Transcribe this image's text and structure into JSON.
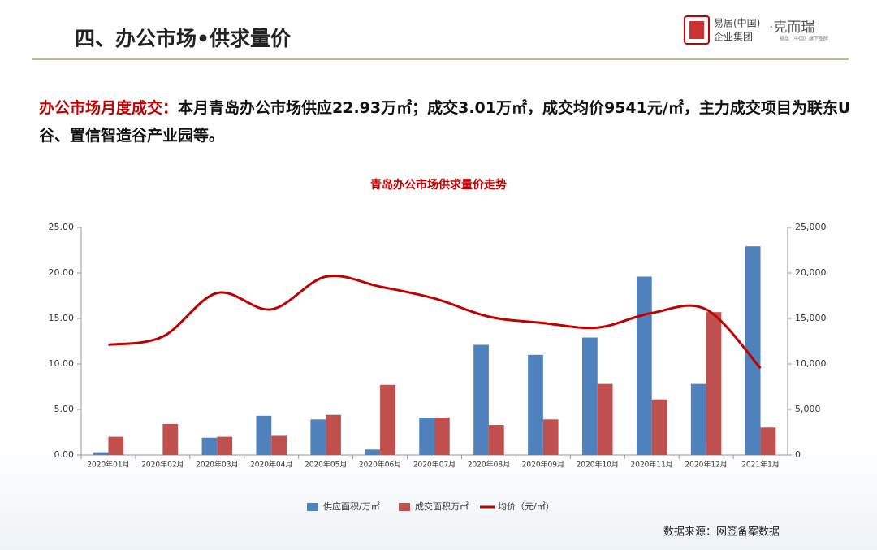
{
  "header": {
    "title": "四、办公市场•供求量价",
    "logo": {
      "line1": "易居(中国)",
      "line2": "企业集团",
      "brand": "·克而瑞",
      "brand_sub": "易居（中国）旗下品牌"
    }
  },
  "summary": {
    "label": "办公市场月度成交：",
    "text": "本月青岛办公市场供应22.93万㎡；成交3.01万㎡，成交均价9541元/㎡，主力成交项目为联东U谷、置信智造谷产业园等。"
  },
  "chart_data": {
    "type": "bar",
    "title": "青岛办公市场供求量价走势",
    "categories": [
      "2020年01月",
      "2020年02月",
      "2020年03月",
      "2020年04月",
      "2020年05月",
      "2020年06月",
      "2020年07月",
      "2020年08月",
      "2020年09月",
      "2020年10月",
      "2020年11月",
      "2020年12月",
      "2021年1月"
    ],
    "series": [
      {
        "name": "供应面积/万㎡",
        "type": "bar",
        "color": "#4f81bd",
        "values": [
          0.3,
          0,
          1.9,
          4.3,
          3.9,
          0.6,
          4.1,
          12.1,
          11.0,
          12.9,
          19.6,
          7.8,
          22.93
        ]
      },
      {
        "name": "成交面积万㎡",
        "type": "bar",
        "color": "#c0504d",
        "values": [
          2.0,
          3.4,
          2.0,
          2.1,
          4.4,
          7.7,
          4.1,
          3.3,
          3.9,
          7.8,
          6.1,
          15.7,
          3.01
        ]
      },
      {
        "name": "均价（元/㎡）",
        "type": "line",
        "axis": "y2",
        "color": "#c00000",
        "values": [
          12100,
          13000,
          17800,
          16000,
          19600,
          18500,
          17200,
          15200,
          14500,
          14000,
          15600,
          16000,
          9541
        ]
      }
    ],
    "ylim": [
      0,
      25
    ],
    "yticks": [
      {
        "value": 0,
        "label": "0.00"
      },
      {
        "value": 5,
        "label": "5.00"
      },
      {
        "value": 10,
        "label": "10.00"
      },
      {
        "value": 15,
        "label": "15.00"
      },
      {
        "value": 20,
        "label": "20.00"
      },
      {
        "value": 25,
        "label": "25.00"
      }
    ],
    "y2lim": [
      0,
      25000
    ],
    "y2ticks": [
      0,
      {
        "value": 5000,
        "label": "5,000"
      },
      {
        "value": 10000,
        "label": "10,000"
      },
      {
        "value": 15000,
        "label": "15,000"
      },
      {
        "value": 20000,
        "label": "20,000"
      },
      {
        "value": 25000,
        "label": "25,000"
      }
    ],
    "legend": "bottom",
    "grid": false
  },
  "source": "数据来源：网签备案数据"
}
